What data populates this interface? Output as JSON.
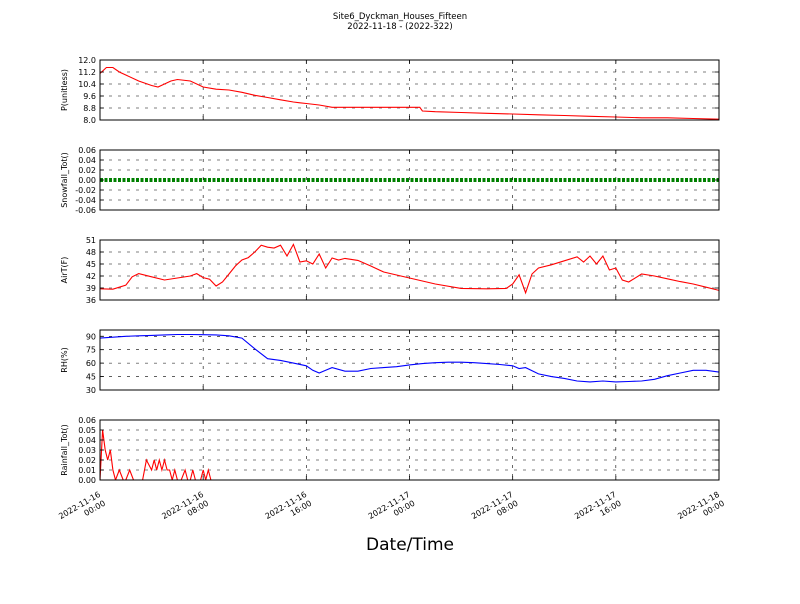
{
  "figure": {
    "title": "Site6_Dyckman_Houses_Fifteen",
    "subtitle": "2022-11-18 - (2022-322)",
    "xlabel": "Date/Time"
  },
  "chart_data": [
    {
      "type": "line",
      "ylabel": "P(unitless)",
      "ylim": [
        8.0,
        12.0
      ],
      "yticks": [
        "8.0",
        "8.8",
        "9.6",
        "10.4",
        "11.2",
        "12.0"
      ],
      "ytick_values": [
        8.0,
        8.8,
        9.6,
        10.4,
        11.2,
        12.0
      ],
      "color": "#ff0000",
      "grid": true,
      "x": [
        0,
        0.5,
        1,
        1.5,
        2,
        3,
        4,
        4.5,
        5,
        5.5,
        6,
        7,
        8,
        9,
        10,
        11,
        12,
        13,
        14,
        15,
        15.5,
        16,
        17,
        18,
        20,
        22,
        24,
        24.8,
        25,
        26,
        28,
        30,
        32,
        34,
        36,
        38,
        40,
        42,
        44,
        46,
        48
      ],
      "y": [
        11.1,
        11.5,
        11.5,
        11.2,
        11.0,
        10.6,
        10.3,
        10.2,
        10.4,
        10.6,
        10.7,
        10.6,
        10.2,
        10.05,
        10.0,
        9.85,
        9.65,
        9.5,
        9.35,
        9.2,
        9.15,
        9.1,
        9.0,
        8.85,
        8.85,
        8.85,
        8.85,
        8.85,
        8.6,
        8.55,
        8.5,
        8.45,
        8.4,
        8.35,
        8.3,
        8.25,
        8.2,
        8.15,
        8.15,
        8.1,
        8.05
      ]
    },
    {
      "type": "line",
      "ylabel": "Snowfall_Tot()",
      "ylim": [
        -0.06,
        0.06
      ],
      "yticks": [
        "-0.06",
        "-0.04",
        "-0.02",
        "0.00",
        "0.02",
        "0.04",
        "0.06"
      ],
      "ytick_values": [
        -0.06,
        -0.04,
        -0.02,
        0.0,
        0.02,
        0.04,
        0.06
      ],
      "color": "#008000",
      "grid": true,
      "x": [
        0,
        48
      ],
      "y": [
        0.0,
        0.0
      ]
    },
    {
      "type": "line",
      "ylabel": "AirT(F)",
      "ylim": [
        36,
        51
      ],
      "yticks": [
        "36",
        "39",
        "42",
        "45",
        "48",
        "51"
      ],
      "ytick_values": [
        36,
        39,
        42,
        45,
        48,
        51
      ],
      "color": "#ff0000",
      "grid": true,
      "x": [
        0,
        1,
        2,
        2.5,
        3,
        4,
        5,
        6,
        7,
        7.5,
        8,
        8.5,
        9,
        9.5,
        10,
        10.5,
        11,
        11.5,
        12,
        12.5,
        13,
        13.5,
        14,
        14.5,
        15,
        15.5,
        16,
        16.5,
        17,
        17.5,
        18,
        18.5,
        19,
        20,
        21,
        22,
        24,
        26,
        28,
        30,
        31.5,
        32,
        32.5,
        33,
        33.5,
        34,
        35,
        36,
        37,
        37.5,
        38,
        38.5,
        39,
        39.5,
        40,
        40.5,
        41,
        42,
        43,
        44,
        45,
        46,
        47,
        48
      ],
      "y": [
        38.8,
        38.7,
        39.7,
        41.8,
        42.6,
        41.8,
        41.0,
        41.5,
        42.0,
        42.6,
        41.6,
        41.2,
        39.5,
        40.5,
        42.5,
        44.5,
        46.0,
        46.6,
        48.0,
        49.7,
        49.2,
        49.0,
        49.7,
        47.0,
        49.9,
        45.5,
        45.8,
        45.0,
        47.5,
        44.0,
        46.5,
        46.0,
        46.4,
        45.9,
        44.5,
        43.0,
        41.5,
        40.0,
        38.9,
        38.8,
        38.9,
        40.0,
        42.3,
        37.8,
        42.5,
        44.0,
        44.8,
        45.8,
        46.8,
        45.5,
        47.0,
        45.0,
        47.0,
        43.5,
        44.0,
        41.0,
        40.5,
        42.5,
        42.0,
        41.3,
        40.6,
        40.0,
        39.2,
        38.4
      ]
    },
    {
      "type": "line",
      "ylabel": "RH(%)",
      "ylim": [
        30,
        97
      ],
      "yticks": [
        "30",
        "45",
        "60",
        "75",
        "90"
      ],
      "ytick_values": [
        30,
        45,
        60,
        75,
        90
      ],
      "color": "#0000ff",
      "grid": true,
      "x": [
        0,
        1,
        2,
        3,
        4,
        5,
        6,
        7,
        8,
        9,
        10,
        11,
        12,
        13,
        14,
        15,
        16,
        16.5,
        17,
        17.5,
        18,
        19,
        20,
        21,
        22,
        23,
        24,
        25,
        26,
        27,
        28,
        29,
        30,
        31,
        32,
        32.5,
        33,
        34,
        35,
        36,
        37,
        38,
        39,
        40,
        41,
        42,
        43,
        44,
        45,
        46,
        47,
        48
      ],
      "y": [
        88,
        89,
        90,
        90.5,
        91,
        91.5,
        92,
        92,
        91.8,
        91.5,
        90.5,
        88,
        76,
        65,
        63,
        60,
        57,
        52,
        49,
        52,
        55,
        51,
        51,
        54,
        55,
        56,
        58,
        59.5,
        60.5,
        61,
        61,
        60.5,
        59.5,
        58.5,
        57,
        54,
        55,
        48,
        45,
        43,
        40,
        39,
        40,
        39,
        39.5,
        40,
        42,
        46,
        49,
        52,
        52,
        50
      ]
    },
    {
      "type": "line",
      "ylabel": "Rainfall_Tot()",
      "ylim": [
        0.0,
        0.06
      ],
      "yticks": [
        "0.00",
        "0.01",
        "0.02",
        "0.03",
        "0.04",
        "0.05",
        "0.06"
      ],
      "ytick_values": [
        0.0,
        0.01,
        0.02,
        0.03,
        0.04,
        0.05,
        0.06
      ],
      "color": "#ff0000",
      "grid": true,
      "x": [
        0,
        0.2,
        0.4,
        0.6,
        0.8,
        1.0,
        1.2,
        1.5,
        1.8,
        2.0,
        2.3,
        2.6,
        3.0,
        3.3,
        3.6,
        4.0,
        4.2,
        4.4,
        4.6,
        4.8,
        5.0,
        5.2,
        5.4,
        5.6,
        5.8,
        6.0,
        6.3,
        6.6,
        6.8,
        7.0,
        7.2,
        7.4,
        7.6,
        7.8,
        8.0,
        8.2,
        8.4,
        8.6,
        8.8,
        9.0,
        9.2,
        9.4,
        9.6,
        48
      ],
      "y": [
        0.0,
        0.05,
        0.03,
        0.02,
        0.03,
        0.01,
        0.0,
        0.01,
        0.0,
        0.0,
        0.01,
        0.0,
        0.0,
        0.0,
        0.02,
        0.01,
        0.02,
        0.01,
        0.02,
        0.01,
        0.02,
        0.01,
        0.01,
        0.0,
        0.01,
        0.0,
        0.0,
        0.01,
        0.0,
        0.0,
        0.01,
        0.0,
        0.0,
        0.0,
        0.01,
        0.0,
        0.01,
        0.0,
        0.0,
        0.0,
        0.0,
        0.0,
        0.0,
        0.0
      ]
    }
  ],
  "xaxis": {
    "xlim": [
      0,
      48
    ],
    "tick_values": [
      0,
      8,
      16,
      24,
      32,
      40,
      48
    ],
    "tick_labels": [
      [
        "2022-11-16",
        "00:00"
      ],
      [
        "2022-11-16",
        "08:00"
      ],
      [
        "2022-11-16",
        "16:00"
      ],
      [
        "2022-11-17",
        "00:00"
      ],
      [
        "2022-11-17",
        "08:00"
      ],
      [
        "2022-11-17",
        "16:00"
      ],
      [
        "2022-11-18",
        "00:00"
      ]
    ]
  }
}
